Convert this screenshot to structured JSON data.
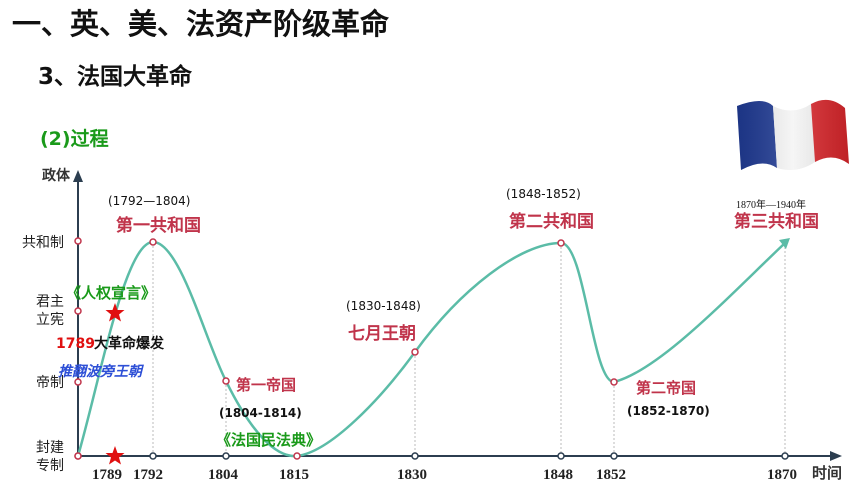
{
  "header": {
    "title": "一、英、美、法资产阶级革命",
    "subtitle": "3、法国大革命",
    "section": "(2)过程"
  },
  "diagram": {
    "y_axis_title": "政体",
    "x_axis_title": "时间",
    "y_levels": [
      {
        "key": "feudal",
        "label_lines": [
          "封建",
          "专制"
        ]
      },
      {
        "key": "empire",
        "label_lines": [
          "帝制"
        ]
      },
      {
        "key": "constitutional",
        "label_lines": [
          "君主",
          "立宪"
        ]
      },
      {
        "key": "republic",
        "label_lines": [
          "共和制"
        ]
      }
    ],
    "x_ticks": [
      "1789",
      "1792",
      "1804",
      "1815",
      "1830",
      "1848",
      "1852",
      "1870"
    ],
    "curve_points": [
      {
        "year": "1789",
        "level": "feudal"
      },
      {
        "year": "1792",
        "level": "republic"
      },
      {
        "year": "1804",
        "level": "empire"
      },
      {
        "year": "1815",
        "level": "feudal"
      },
      {
        "year": "1830",
        "level": "constitutional"
      },
      {
        "year": "1848",
        "level": "republic"
      },
      {
        "year": "1852",
        "level": "empire"
      },
      {
        "year": "1870",
        "level": "republic"
      }
    ],
    "stages": [
      {
        "name": "第一共和国",
        "period": "(1792—1804)"
      },
      {
        "name": "第一帝国",
        "period": "(1804-1814)"
      },
      {
        "name": "七月王朝",
        "period": "(1830-1848)"
      },
      {
        "name": "第二共和国",
        "period": "(1848-1852)"
      },
      {
        "name": "第二帝国",
        "period": "(1852-1870)"
      },
      {
        "name": "第三共和国",
        "period": "1870年—1940年"
      }
    ],
    "events": {
      "rights_declaration": "《人权宣言》",
      "revolution_year": "1789",
      "revolution_text": "大革命爆发",
      "overthrow": "推翻波旁王朝",
      "civil_code": "《法国民法典》"
    },
    "colors": {
      "curve": "#5bbca7",
      "stage": "#c0344b",
      "green": "#1a9a1a",
      "blue": "#2d4fd6",
      "red": "#e01010",
      "axis": "#2c3e50"
    }
  }
}
